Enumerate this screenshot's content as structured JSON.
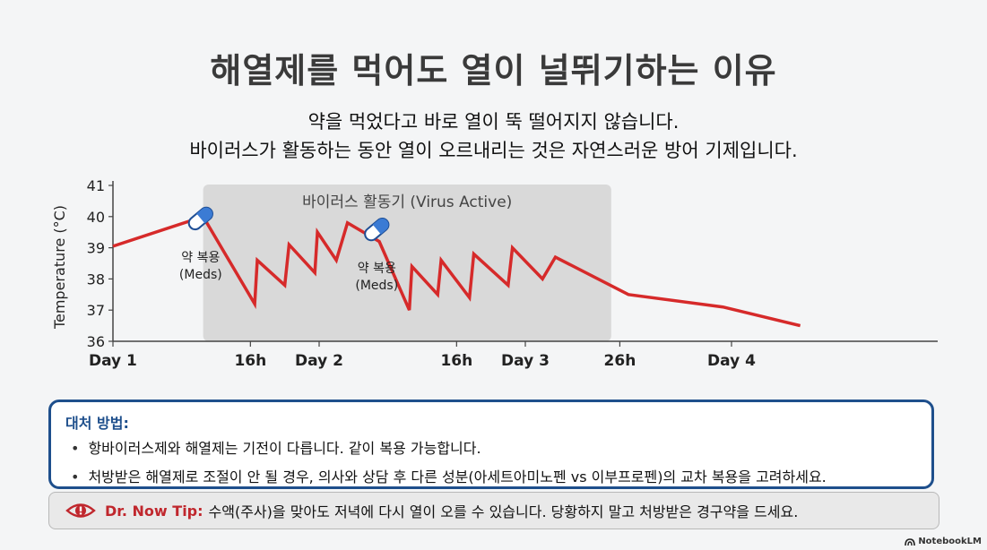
{
  "header": {
    "title": "해열제를 먹어도 열이 널뛰기하는 이유",
    "subtitle_line1": "약을 먹었다고 바로 열이 뚝 떨어지지 않습니다.",
    "subtitle_line2": "바이러스가 활동하는 동안 열이 오르내리는 것은 자연스러운 방어 기제입니다."
  },
  "chart_data": {
    "type": "line",
    "ylabel": "Temperature (°C)",
    "xlabel": "",
    "ylim": [
      36,
      41
    ],
    "yticks": [
      36,
      37,
      38,
      39,
      40,
      41
    ],
    "x_domain": [
      0,
      96
    ],
    "xticks": [
      {
        "x": 0,
        "label": "Day 1"
      },
      {
        "x": 16,
        "label": "16h"
      },
      {
        "x": 24,
        "label": "Day 2"
      },
      {
        "x": 40,
        "label": "16h"
      },
      {
        "x": 48,
        "label": "Day 3"
      },
      {
        "x": 59,
        "label": "26h"
      },
      {
        "x": 72,
        "label": "Day 4"
      }
    ],
    "shaded_region": {
      "x_start": 10.5,
      "x_end": 58,
      "label": "바이러스 활동기 (Virus Active)"
    },
    "series": [
      {
        "color": "#d62a2a",
        "points": [
          [
            0,
            39.05
          ],
          [
            10.5,
            40.0
          ],
          [
            16.5,
            37.2
          ],
          [
            16.8,
            38.6
          ],
          [
            20,
            37.8
          ],
          [
            20.5,
            39.1
          ],
          [
            23.5,
            38.2
          ],
          [
            23.8,
            39.5
          ],
          [
            26,
            38.6
          ],
          [
            27.3,
            39.8
          ],
          [
            31,
            39.2
          ],
          [
            34.5,
            37.0
          ],
          [
            34.8,
            38.4
          ],
          [
            37.8,
            37.5
          ],
          [
            38.2,
            38.6
          ],
          [
            41.5,
            37.4
          ],
          [
            42,
            38.8
          ],
          [
            46,
            37.8
          ],
          [
            46.5,
            39.0
          ],
          [
            50,
            38.0
          ],
          [
            51.5,
            38.7
          ],
          [
            60,
            37.5
          ],
          [
            71,
            37.1
          ],
          [
            80,
            36.5
          ]
        ]
      }
    ],
    "annotations": [
      {
        "x": 10,
        "y": 38.1,
        "line1": "약 복용",
        "line2": "(Meds)",
        "icon": "pill-icon"
      },
      {
        "x": 30.5,
        "y": 37.75,
        "line1": "약 복용",
        "line2": "(Meds)",
        "icon": "pill-icon"
      }
    ]
  },
  "coping": {
    "heading": "대처 방법:",
    "items": [
      "항바이러스제와 해열제는 기전이 다릅니다. 같이 복용 가능합니다.",
      "처방받은 해열제로 조절이 안 될 경우, 의사와 상담 후 다른 성분(아세트아미노펜 vs 이부프로펜)의 교차 복용을 고려하세요."
    ]
  },
  "tip": {
    "label": "Dr. Now Tip:",
    "text": "수액(주사)을 맞아도 저녁에 다시 열이 오를 수 있습니다. 당황하지 말고 처방받은 경구약을 드세요.",
    "icon": "eye-alert-icon"
  },
  "brand": {
    "name": "NotebookLM",
    "icon": "notebooklm-logo-icon"
  },
  "colors": {
    "accent": "#1e4f8c",
    "line": "#d62a2a",
    "tip_label": "#c0272d",
    "shade": "#d9d9d9"
  }
}
